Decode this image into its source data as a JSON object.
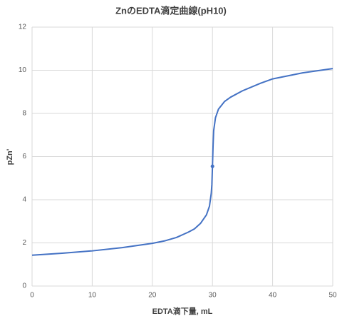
{
  "chart_data": {
    "type": "line",
    "title": "ZnのEDTA滴定曲線(pH10)",
    "x_label": "EDTA滴下量, mL",
    "y_label": "pZn'",
    "x": [
      0,
      5,
      10,
      15,
      20,
      22,
      24,
      26,
      27,
      28,
      29,
      29.5,
      29.8,
      29.9,
      30,
      30.1,
      30.2,
      30.5,
      31,
      32,
      33,
      35,
      38,
      40,
      45,
      50
    ],
    "values": [
      1.43,
      1.52,
      1.63,
      1.78,
      1.98,
      2.09,
      2.25,
      2.5,
      2.65,
      2.9,
      3.3,
      3.7,
      4.3,
      4.7,
      5.55,
      6.5,
      7.2,
      7.8,
      8.2,
      8.55,
      8.75,
      9.05,
      9.4,
      9.6,
      9.88,
      10.08
    ],
    "color": "#4472c4",
    "points": [
      {
        "x": 30,
        "y": 5.55
      }
    ],
    "xlim": [
      0,
      50
    ],
    "xticks": [
      0,
      10,
      20,
      30,
      40,
      50
    ],
    "ylim": [
      0,
      12
    ],
    "yticks": [
      0,
      2,
      4,
      6,
      8,
      10,
      12
    ],
    "grid": true
  }
}
